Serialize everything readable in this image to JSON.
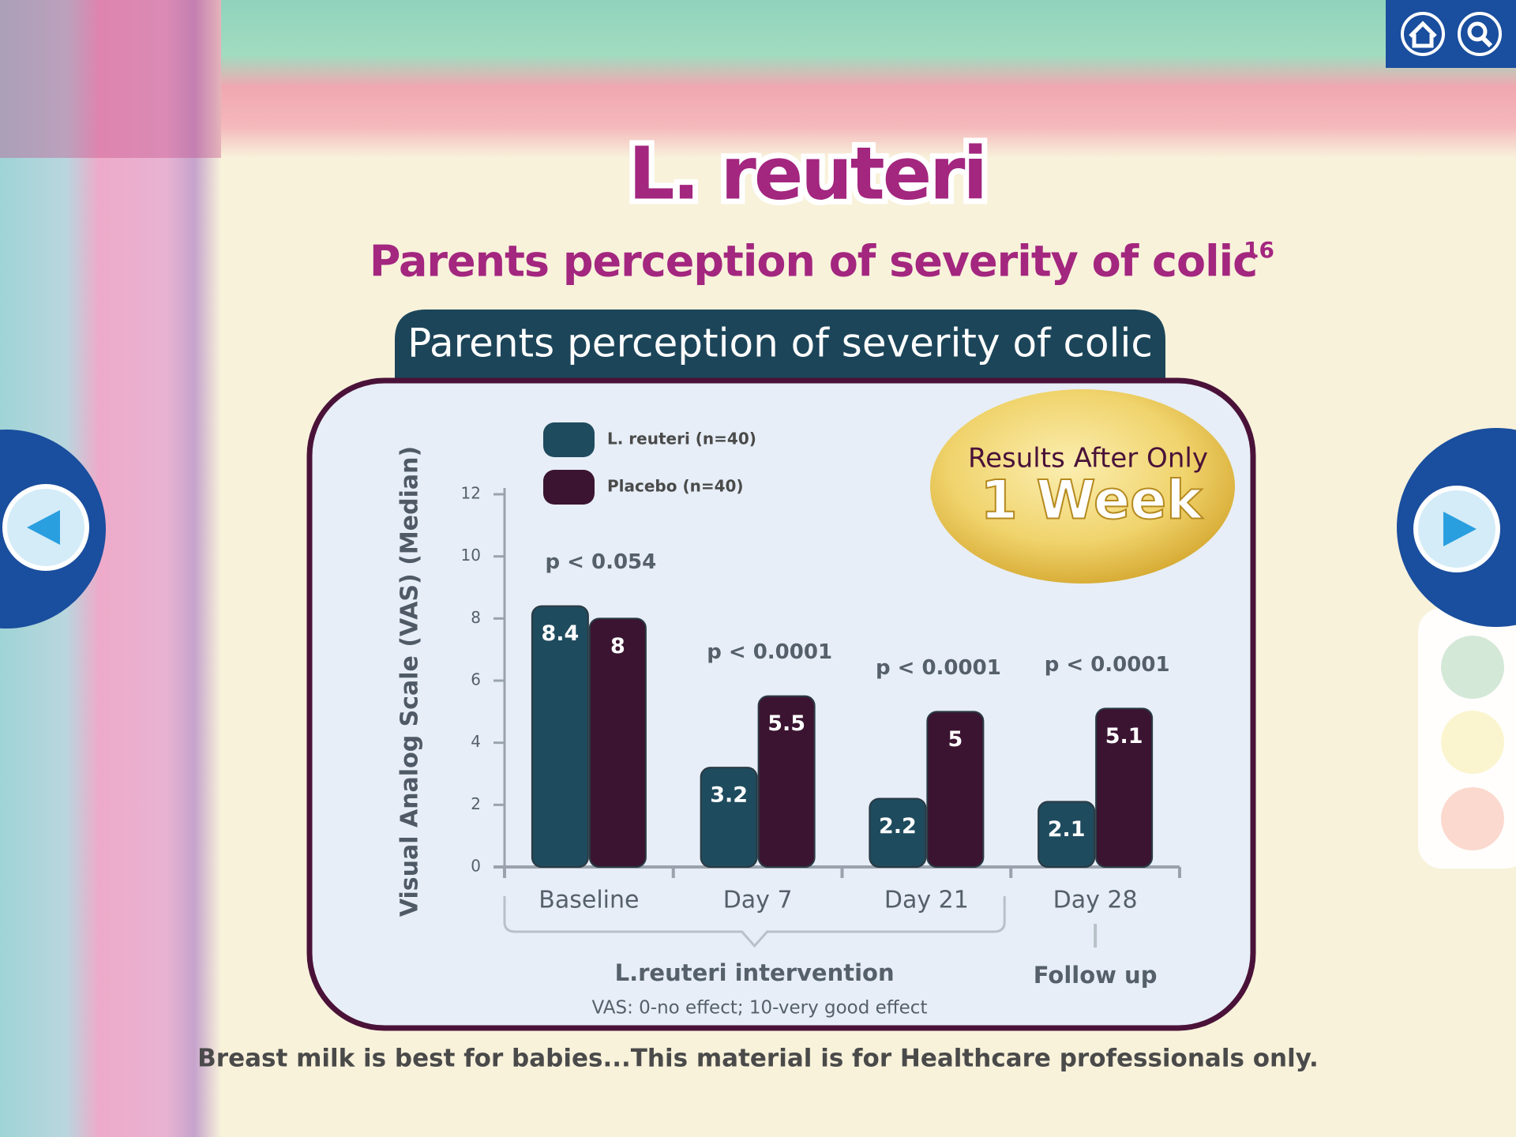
{
  "title": "L. reuteri",
  "subtitle": "Parents perception of severity of colic",
  "subtitle_ref": "16",
  "chart_data": {
    "type": "bar",
    "title": "Parents perception of severity of colic",
    "y_label": "Visual Analog Scale (VAS) (Median)",
    "categories": [
      "Baseline",
      "Day 7",
      "Day 21",
      "Day 28"
    ],
    "series": [
      {
        "name": "L. reuteri (n=40)",
        "color": "#1f4b5e",
        "values": [
          8.4,
          3.2,
          2.2,
          2.1
        ]
      },
      {
        "name": "Placebo (n=40)",
        "color": "#3b1431",
        "values": [
          8,
          5.5,
          5,
          5.1
        ]
      }
    ],
    "ylim": [
      0,
      12
    ],
    "yticks": [
      0,
      2,
      4,
      6,
      8,
      10,
      12
    ],
    "p_values": [
      "p < 0.054",
      "p < 0.0001",
      "p < 0.0001",
      "p < 0.0001"
    ],
    "groups": [
      "L.reuteri intervention",
      "Follow up"
    ],
    "note": "VAS: 0-no effect; 10-very good effect"
  },
  "badge": {
    "line1": "Results After Only",
    "line2": "1 Week"
  },
  "footer": "Breast milk is best for babies...This material is for Healthcare professionals only."
}
